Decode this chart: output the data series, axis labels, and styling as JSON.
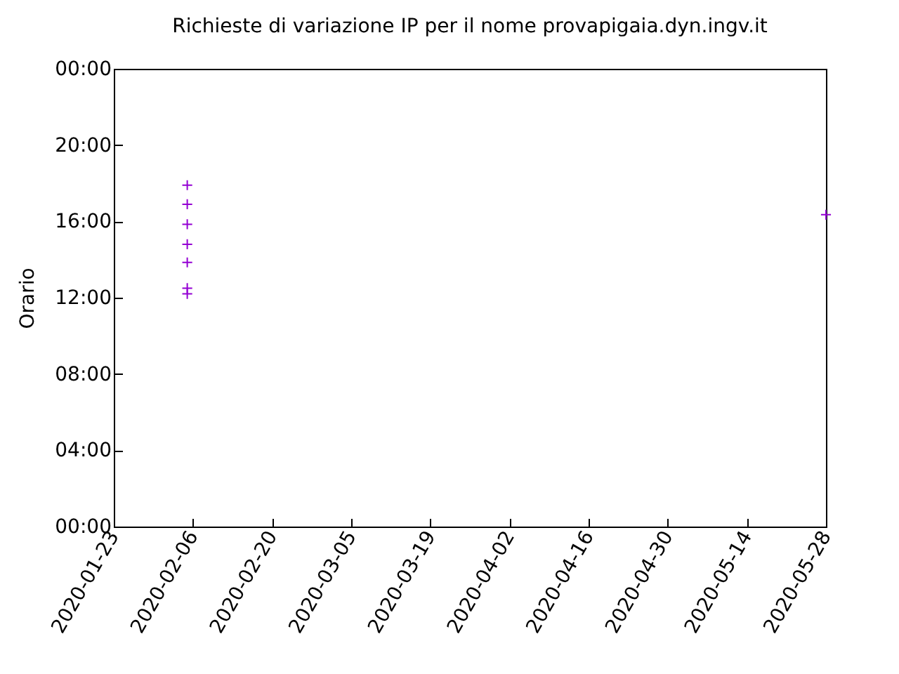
{
  "chart_data": {
    "type": "scatter",
    "title": "Richieste di variazione IP per il nome provapigaia.dyn.ingv.it",
    "ylabel": "Orario",
    "x": [
      "2020-02-05",
      "2020-02-05",
      "2020-02-05",
      "2020-02-05",
      "2020-02-05",
      "2020-02-05",
      "2020-02-05",
      "2020-05-28"
    ],
    "series": [
      {
        "color": "#9400d3",
        "values": [
          17.9,
          16.9,
          15.85,
          14.8,
          13.85,
          12.5,
          12.2,
          16.35
        ]
      }
    ],
    "xlim": [
      "2020-01-23",
      "2020-05-28"
    ],
    "xticks": [
      "2020-01-23",
      "2020-02-06",
      "2020-02-20",
      "2020-03-05",
      "2020-03-19",
      "2020-04-02",
      "2020-04-16",
      "2020-04-30",
      "2020-05-14",
      "2020-05-28"
    ],
    "ylim": [
      0,
      24
    ],
    "yticks": [
      {
        "value": 0,
        "label": "00:00"
      },
      {
        "value": 4,
        "label": "04:00"
      },
      {
        "value": 8,
        "label": "08:00"
      },
      {
        "value": 12,
        "label": "12:00"
      },
      {
        "value": 16,
        "label": "16:00"
      },
      {
        "value": 20,
        "label": "20:00"
      },
      {
        "value": 24,
        "label": "00:00"
      }
    ],
    "marker": "cross",
    "grid": false
  }
}
